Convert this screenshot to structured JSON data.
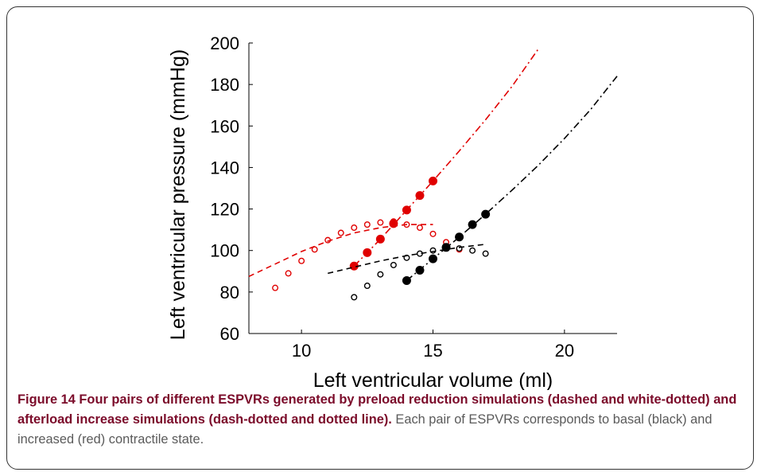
{
  "chart_data": {
    "type": "scatter",
    "xlabel": "Left ventricular volume (ml)",
    "ylabel": "Left ventricular pressure (mmHg)",
    "xlim": [
      8,
      22
    ],
    "ylim": [
      60,
      200
    ],
    "xticks": [
      10,
      15,
      20
    ],
    "yticks": [
      60,
      80,
      100,
      120,
      140,
      160,
      180,
      200
    ],
    "grid": false,
    "series": [
      {
        "style": "open-circle",
        "color": "#e00000",
        "x": [
          9,
          9.5,
          10,
          10.5,
          11,
          11.5,
          12,
          12.5,
          13,
          13.5,
          14,
          14.5,
          15,
          15.5,
          16
        ],
        "y": [
          82,
          89,
          95,
          100.5,
          105,
          108.5,
          111,
          112.5,
          113.5,
          114,
          112.5,
          111,
          108,
          104,
          100.5
        ]
      },
      {
        "style": "dashed",
        "color": "#e00000",
        "x": [
          8,
          9,
          10,
          11,
          12,
          13,
          14,
          15
        ],
        "y": [
          87.5,
          93.5,
          99.5,
          104.5,
          108.5,
          111,
          112.5,
          112.5
        ]
      },
      {
        "style": "filled-circle",
        "color": "#e00000",
        "x": [
          12,
          12.5,
          13,
          13.5,
          14,
          14.5,
          15
        ],
        "y": [
          92.5,
          99,
          105.5,
          113,
          119.5,
          126.5,
          133.5
        ]
      },
      {
        "style": "dash-dot",
        "color": "#e00000",
        "x": [
          12,
          13,
          14,
          15,
          16,
          17,
          18,
          19
        ],
        "y": [
          92.5,
          105.5,
          119.5,
          133.5,
          148,
          163,
          179,
          197
        ]
      },
      {
        "style": "open-circle",
        "color": "#000000",
        "x": [
          12,
          12.5,
          13,
          13.5,
          14,
          14.5,
          15,
          15.5,
          16,
          16.5,
          17
        ],
        "y": [
          77.5,
          83,
          88.5,
          93,
          96.5,
          98.5,
          100,
          101,
          101,
          100,
          98.5
        ]
      },
      {
        "style": "dashed",
        "color": "#000000",
        "x": [
          11,
          12,
          13,
          14,
          15,
          16,
          17
        ],
        "y": [
          89,
          92,
          95,
          97.5,
          99.5,
          101.5,
          103
        ]
      },
      {
        "style": "filled-circle",
        "color": "#000000",
        "x": [
          14,
          14.5,
          15,
          15.5,
          16,
          16.5,
          17
        ],
        "y": [
          85.5,
          90.5,
          96,
          101.5,
          106.5,
          112.5,
          117.5
        ]
      },
      {
        "style": "dash-dot",
        "color": "#000000",
        "x": [
          14,
          15,
          16,
          17,
          18,
          19,
          20,
          21,
          22
        ],
        "y": [
          85.5,
          96,
          106.5,
          117.5,
          129,
          141,
          154,
          168,
          184
        ]
      }
    ]
  },
  "caption": {
    "lead": "Figure 14 Four pairs of different ESPVRs generated by preload reduction simulations (dashed and white-dotted) and afterload increase simulations (dash-dotted and dotted line).",
    "body": " Each pair of ESPVRs corresponds to basal (black) and increased (red) contractile state."
  }
}
